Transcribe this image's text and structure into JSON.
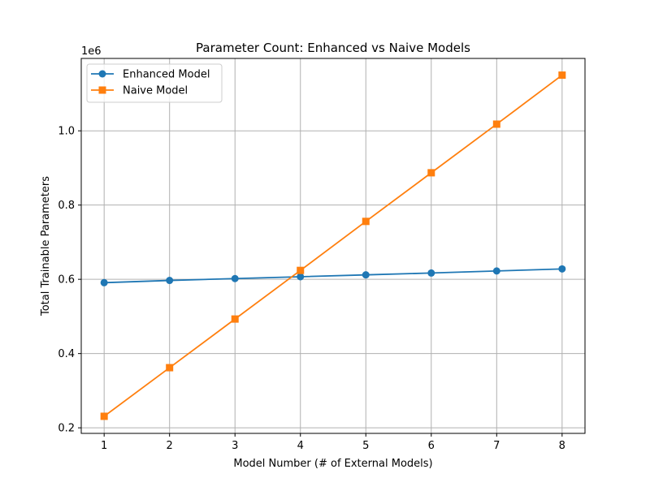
{
  "chart_data": {
    "type": "line",
    "title": "Parameter Count: Enhanced vs Naive Models",
    "xlabel": "Model Number (# of External Models)",
    "ylabel": "Total Trainable Parameters",
    "y_offset_label": "1e6",
    "y_scale_factor": 1000000,
    "x": [
      1,
      2,
      3,
      4,
      5,
      6,
      7,
      8
    ],
    "xlim": [
      0.65,
      8.35
    ],
    "ylim": [
      185000,
      1195000
    ],
    "x_ticks": [
      1,
      2,
      3,
      4,
      5,
      6,
      7,
      8
    ],
    "y_ticks": [
      200000,
      400000,
      600000,
      800000,
      1000000
    ],
    "y_tick_labels": [
      "0.2",
      "0.4",
      "0.6",
      "0.8",
      "1.0"
    ],
    "grid": true,
    "legend_position": "upper-left",
    "series": [
      {
        "name": "Enhanced Model",
        "marker": "circle",
        "color": "#1f77b4",
        "values": [
          591000,
          597000,
          602000,
          607000,
          612000,
          617000,
          622500,
          628000
        ]
      },
      {
        "name": "Naive Model",
        "marker": "square",
        "color": "#ff7f0e",
        "values": [
          231000,
          362000,
          493000,
          624000,
          756000,
          887000,
          1018000,
          1150000
        ]
      }
    ]
  }
}
